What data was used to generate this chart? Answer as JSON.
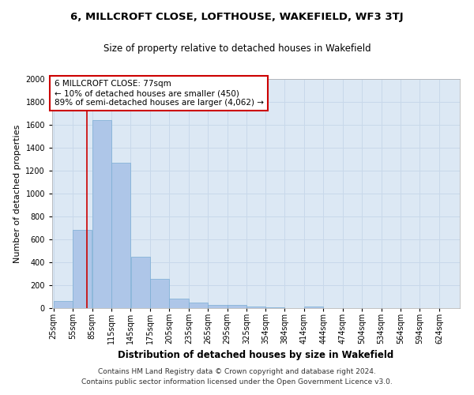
{
  "title": "6, MILLCROFT CLOSE, LOFTHOUSE, WAKEFIELD, WF3 3TJ",
  "subtitle": "Size of property relative to detached houses in Wakefield",
  "xlabel": "Distribution of detached houses by size in Wakefield",
  "ylabel": "Number of detached properties",
  "footnote1": "Contains HM Land Registry data © Crown copyright and database right 2024.",
  "footnote2": "Contains public sector information licensed under the Open Government Licence v3.0.",
  "annotation_title": "6 MILLCROFT CLOSE: 77sqm",
  "annotation_line1": "← 10% of detached houses are smaller (450)",
  "annotation_line2": "89% of semi-detached houses are larger (4,062) →",
  "property_size": 77,
  "categories": [
    "25sqm",
    "55sqm",
    "85sqm",
    "115sqm",
    "145sqm",
    "175sqm",
    "205sqm",
    "235sqm",
    "265sqm",
    "295sqm",
    "325sqm",
    "354sqm",
    "384sqm",
    "414sqm",
    "444sqm",
    "474sqm",
    "504sqm",
    "534sqm",
    "564sqm",
    "594sqm",
    "624sqm"
  ],
  "bar_left_edges": [
    25,
    55,
    85,
    115,
    145,
    175,
    205,
    235,
    265,
    295,
    325,
    354,
    384,
    414,
    444,
    474,
    504,
    534,
    564,
    594,
    624
  ],
  "bar_widths": [
    30,
    30,
    30,
    30,
    30,
    30,
    30,
    30,
    30,
    30,
    29,
    30,
    30,
    30,
    30,
    30,
    30,
    30,
    30,
    30,
    30
  ],
  "values": [
    65,
    680,
    1640,
    1270,
    450,
    255,
    85,
    50,
    30,
    25,
    15,
    10,
    0,
    15,
    0,
    0,
    0,
    0,
    0,
    0,
    0
  ],
  "bar_color": "#aec6e8",
  "bar_edge_color": "#7aadd4",
  "grid_color": "#c8d8ea",
  "bg_color": "#dce8f4",
  "vline_color": "#cc0000",
  "vline_x": 77,
  "annotation_box_color": "#cc0000",
  "ylim": [
    0,
    2000
  ],
  "yticks": [
    0,
    200,
    400,
    600,
    800,
    1000,
    1200,
    1400,
    1600,
    1800,
    2000
  ],
  "title_fontsize": 9.5,
  "subtitle_fontsize": 8.5,
  "xlabel_fontsize": 8.5,
  "ylabel_fontsize": 8,
  "tick_fontsize": 7,
  "annotation_fontsize": 7.5,
  "footnote_fontsize": 6.5
}
